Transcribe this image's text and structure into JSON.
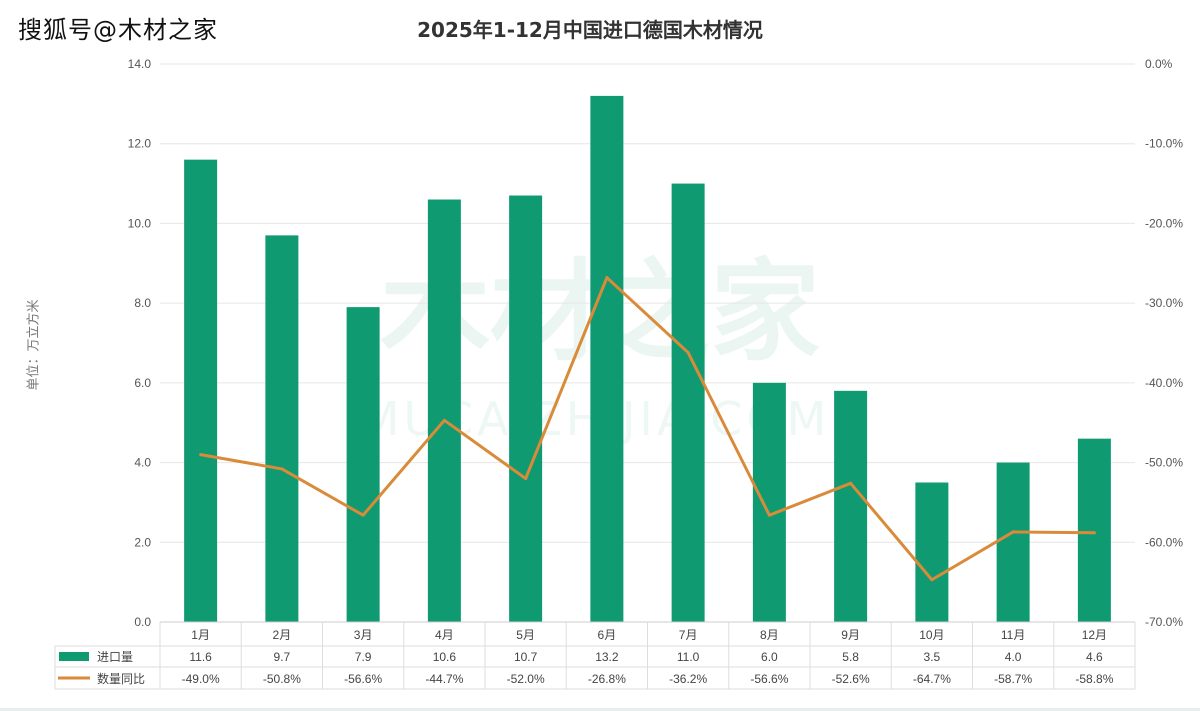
{
  "brand": "搜狐号@木材之家",
  "watermark": {
    "cn": "木材之家",
    "en": "MUCAIZHIJIA.COM"
  },
  "chart_data": {
    "type": "bar+line",
    "title": "2025年1-12月中国进口德国木材情况",
    "ylabel": "单位：万立方米",
    "categories": [
      "1月",
      "2月",
      "3月",
      "4月",
      "5月",
      "6月",
      "7月",
      "8月",
      "9月",
      "10月",
      "11月",
      "12月"
    ],
    "series": [
      {
        "name": "进口量",
        "type": "bar",
        "axis": "left",
        "color": "#0f9a72",
        "values": [
          11.6,
          9.7,
          7.9,
          10.6,
          10.7,
          13.2,
          11.0,
          6.0,
          5.8,
          3.5,
          4.0,
          4.6
        ],
        "labels": [
          "11.6",
          "9.7",
          "7.9",
          "10.6",
          "10.7",
          "13.2",
          "11.0",
          "6.0",
          "5.8",
          "3.5",
          "4.0",
          "4.6"
        ]
      },
      {
        "name": "数量同比",
        "type": "line",
        "axis": "right",
        "color": "#d98b3a",
        "values": [
          -49.0,
          -50.8,
          -56.6,
          -44.7,
          -52.0,
          -26.8,
          -36.2,
          -56.6,
          -52.6,
          -64.7,
          -58.7,
          -58.8
        ],
        "labels": [
          "-49.0%",
          "-50.8%",
          "-56.6%",
          "-44.7%",
          "-52.0%",
          "-26.8%",
          "-36.2%",
          "-56.6%",
          "-52.6%",
          "-64.7%",
          "-58.7%",
          "-58.8%"
        ]
      }
    ],
    "ylim_left": [
      0,
      14
    ],
    "ylim_right": [
      -70,
      0
    ],
    "left_ticks": [
      "0.0",
      "2.0",
      "4.0",
      "6.0",
      "8.0",
      "10.0",
      "12.0",
      "14.0"
    ],
    "right_ticks": [
      "-70.0%",
      "-60.0%",
      "-50.0%",
      "-40.0%",
      "-30.0%",
      "-20.0%",
      "-10.0%",
      "0.0%"
    ],
    "grid": true,
    "legend": "data-table-bottom"
  }
}
